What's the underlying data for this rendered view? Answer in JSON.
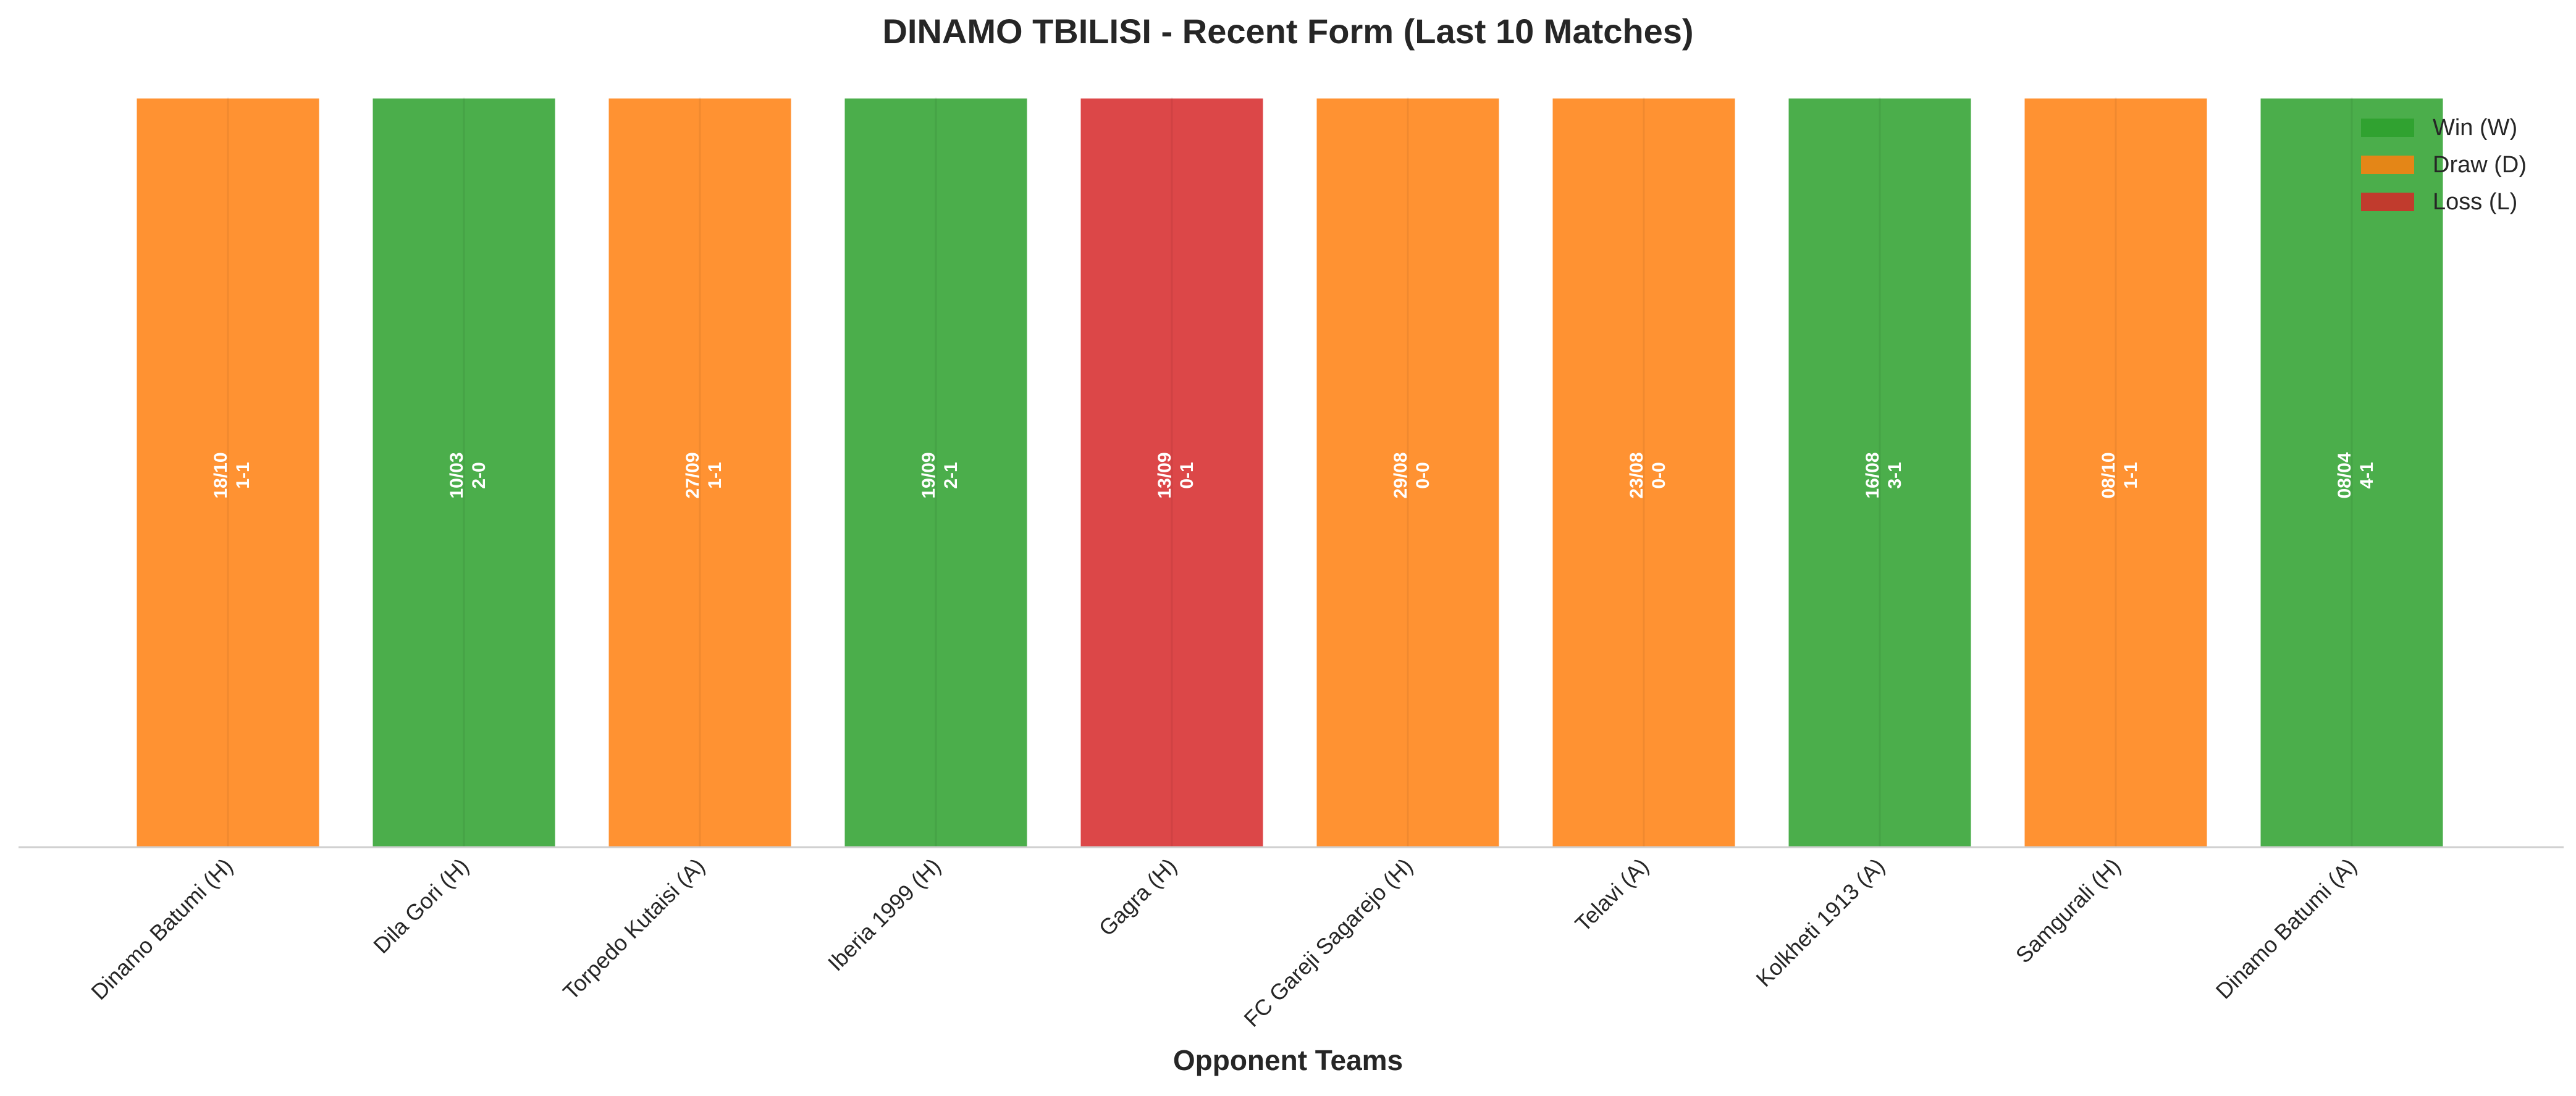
{
  "chart_data": {
    "type": "bar",
    "title": "DINAMO TBILISI - Recent Form (Last 10 Matches)",
    "xlabel": "Opponent Teams",
    "ylabel": "",
    "categories": [
      "Dinamo Batumi (H)",
      "Dila Gori (H)",
      "Torpedo Kutaisi (A)",
      "Iberia 1999 (H)",
      "Gagra (H)",
      "FC Gareji Sagarejo (H)",
      "Telavi (A)",
      "Kolkheti 1913 (A)",
      "Samgurali (H)",
      "Dinamo Batumi (A)"
    ],
    "values": [
      1,
      1,
      1,
      1,
      1,
      1,
      1,
      1,
      1,
      1
    ],
    "results": [
      "D",
      "W",
      "D",
      "W",
      "L",
      "D",
      "D",
      "W",
      "D",
      "W"
    ],
    "dates": [
      "18/10",
      "10/03",
      "27/09",
      "19/09",
      "13/09",
      "29/08",
      "23/08",
      "16/08",
      "08/10",
      "08/04"
    ],
    "scores": [
      "1-1",
      "2-0",
      "1-1",
      "2-1",
      "0-1",
      "0-0",
      "0-0",
      "3-1",
      "1-1",
      "4-1"
    ],
    "legend": [
      {
        "key": "W",
        "label": "Win (W)",
        "color": "#2ca02c"
      },
      {
        "key": "D",
        "label": "Draw (D)",
        "color": "#ff7f0e"
      },
      {
        "key": "L",
        "label": "Loss (L)",
        "color": "#d62728"
      }
    ],
    "legend_position": "top-right",
    "grid": false
  }
}
